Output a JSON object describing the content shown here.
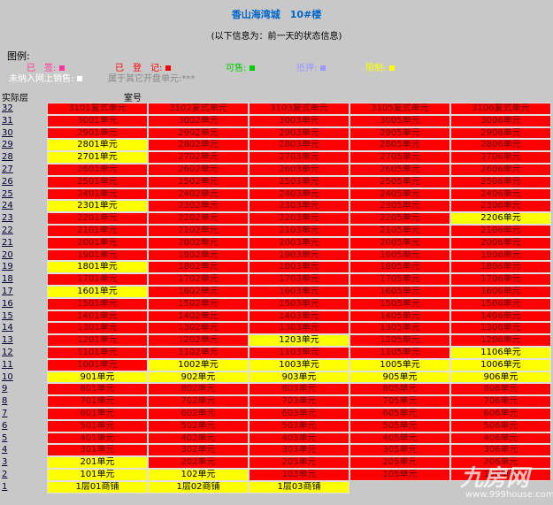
{
  "header": {
    "title": "香山海湾城　10#楼",
    "subtitle": "(以下信息为：前一天的状态信息)"
  },
  "legend": {
    "label": "图例:",
    "items": [
      {
        "label": "已　签:",
        "color": "#ff3399"
      },
      {
        "label": "已　登　记:",
        "color": "#ff0000"
      },
      {
        "label": "可售:",
        "color": "#00cc00"
      },
      {
        "label": "抵押:",
        "color": "#9999ff"
      },
      {
        "label": "限制:",
        "color": "#ffff00"
      },
      {
        "label": "未纳入网上销售:",
        "color": "#ffffff"
      }
    ],
    "other": "属于其它开盘单元:***"
  },
  "table": {
    "floor_header": "实际层",
    "room_header": "室号",
    "rows": [
      {
        "floor": "32",
        "cells": [
          {
            "text": "3101复式单元",
            "fill": "#ff0000"
          },
          {
            "text": "3102复式单元",
            "fill": "#ff0000"
          },
          {
            "text": "3103复式单元",
            "fill": "#ff0000"
          },
          {
            "text": "3105复式单元",
            "fill": "#ff0000"
          },
          {
            "text": "3106复式单元",
            "fill": "#ff0000"
          }
        ]
      },
      {
        "floor": "31",
        "cells": [
          {
            "text": "3001单元",
            "fill": "#ff0000"
          },
          {
            "text": "3002单元",
            "fill": "#ff0000"
          },
          {
            "text": "3003单元",
            "fill": "#ff0000"
          },
          {
            "text": "3005单元",
            "fill": "#ff0000"
          },
          {
            "text": "3006单元",
            "fill": "#ff0000"
          }
        ]
      },
      {
        "floor": "30",
        "cells": [
          {
            "text": "2901单元",
            "fill": "#ff0000"
          },
          {
            "text": "2902单元",
            "fill": "#ff0000"
          },
          {
            "text": "2903单元",
            "fill": "#ff0000"
          },
          {
            "text": "2905单元",
            "fill": "#ff0000"
          },
          {
            "text": "2906单元",
            "fill": "#ff0000"
          }
        ]
      },
      {
        "floor": "29",
        "cells": [
          {
            "text": "2801单元",
            "fill": "#ffff00"
          },
          {
            "text": "2802单元",
            "fill": "#ff0000"
          },
          {
            "text": "2803单元",
            "fill": "#ff0000"
          },
          {
            "text": "2805单元",
            "fill": "#ff0000"
          },
          {
            "text": "2806单元",
            "fill": "#ff0000"
          }
        ]
      },
      {
        "floor": "28",
        "cells": [
          {
            "text": "2701单元",
            "fill": "#ffff00"
          },
          {
            "text": "2702单元",
            "fill": "#ff0000"
          },
          {
            "text": "2703单元",
            "fill": "#ff0000"
          },
          {
            "text": "2705单元",
            "fill": "#ff0000"
          },
          {
            "text": "2706单元",
            "fill": "#ff0000"
          }
        ]
      },
      {
        "floor": "27",
        "cells": [
          {
            "text": "2601单元",
            "fill": "#ff0000"
          },
          {
            "text": "2602单元",
            "fill": "#ff0000"
          },
          {
            "text": "2603单元",
            "fill": "#ff0000"
          },
          {
            "text": "2605单元",
            "fill": "#ff0000"
          },
          {
            "text": "2606单元",
            "fill": "#ff0000"
          }
        ]
      },
      {
        "floor": "26",
        "cells": [
          {
            "text": "2501单元",
            "fill": "#ff0000"
          },
          {
            "text": "2502单元",
            "fill": "#ff0000"
          },
          {
            "text": "2503单元",
            "fill": "#ff0000"
          },
          {
            "text": "2505单元",
            "fill": "#ff0000"
          },
          {
            "text": "2506单元",
            "fill": "#ff0000"
          }
        ]
      },
      {
        "floor": "25",
        "cells": [
          {
            "text": "2401单元",
            "fill": "#ff0000"
          },
          {
            "text": "2402单元",
            "fill": "#ff0000"
          },
          {
            "text": "2403单元",
            "fill": "#ff0000"
          },
          {
            "text": "2405单元",
            "fill": "#ff0000"
          },
          {
            "text": "2406单元",
            "fill": "#ff0000"
          }
        ]
      },
      {
        "floor": "24",
        "cells": [
          {
            "text": "2301单元",
            "fill": "#ffff00"
          },
          {
            "text": "2302单元",
            "fill": "#ff0000"
          },
          {
            "text": "2303单元",
            "fill": "#ff0000"
          },
          {
            "text": "2305单元",
            "fill": "#ff0000"
          },
          {
            "text": "2306单元",
            "fill": "#ff0000"
          }
        ]
      },
      {
        "floor": "23",
        "cells": [
          {
            "text": "2201单元",
            "fill": "#ff0000"
          },
          {
            "text": "2202单元",
            "fill": "#ff0000"
          },
          {
            "text": "2203单元",
            "fill": "#ff0000"
          },
          {
            "text": "2205单元",
            "fill": "#ff0000"
          },
          {
            "text": "2206单元",
            "fill": "#ffff00"
          }
        ]
      },
      {
        "floor": "22",
        "cells": [
          {
            "text": "2101单元",
            "fill": "#ff0000"
          },
          {
            "text": "2102单元",
            "fill": "#ff0000"
          },
          {
            "text": "2103单元",
            "fill": "#ff0000"
          },
          {
            "text": "2105单元",
            "fill": "#ff0000"
          },
          {
            "text": "2106单元",
            "fill": "#ff0000"
          }
        ]
      },
      {
        "floor": "21",
        "cells": [
          {
            "text": "2001单元",
            "fill": "#ff0000"
          },
          {
            "text": "2002单元",
            "fill": "#ff0000"
          },
          {
            "text": "2003单元",
            "fill": "#ff0000"
          },
          {
            "text": "2005单元",
            "fill": "#ff0000"
          },
          {
            "text": "2006单元",
            "fill": "#ff0000"
          }
        ]
      },
      {
        "floor": "20",
        "cells": [
          {
            "text": "1901单元",
            "fill": "#ff0000"
          },
          {
            "text": "1902单元",
            "fill": "#ff0000"
          },
          {
            "text": "1903单元",
            "fill": "#ff0000"
          },
          {
            "text": "1905单元",
            "fill": "#ff0000"
          },
          {
            "text": "1906单元",
            "fill": "#ff0000"
          }
        ]
      },
      {
        "floor": "19",
        "cells": [
          {
            "text": "1801单元",
            "fill": "#ffff00"
          },
          {
            "text": "1802单元",
            "fill": "#ff0000"
          },
          {
            "text": "1803单元",
            "fill": "#ff0000"
          },
          {
            "text": "1805单元",
            "fill": "#ff0000"
          },
          {
            "text": "1806单元",
            "fill": "#ff0000"
          }
        ]
      },
      {
        "floor": "18",
        "cells": [
          {
            "text": "1701单元",
            "fill": "#ff0000"
          },
          {
            "text": "1702单元",
            "fill": "#ff0000"
          },
          {
            "text": "1703单元",
            "fill": "#ff0000"
          },
          {
            "text": "1705单元",
            "fill": "#ff0000"
          },
          {
            "text": "1706单元",
            "fill": "#ff0000"
          }
        ]
      },
      {
        "floor": "17",
        "cells": [
          {
            "text": "1601单元",
            "fill": "#ffff00"
          },
          {
            "text": "1602单元",
            "fill": "#ff0000"
          },
          {
            "text": "1603单元",
            "fill": "#ff0000"
          },
          {
            "text": "1605单元",
            "fill": "#ff0000"
          },
          {
            "text": "1606单元",
            "fill": "#ff0000"
          }
        ]
      },
      {
        "floor": "16",
        "cells": [
          {
            "text": "1501单元",
            "fill": "#ff0000"
          },
          {
            "text": "1502单元",
            "fill": "#ff0000"
          },
          {
            "text": "1503单元",
            "fill": "#ff0000"
          },
          {
            "text": "1505单元",
            "fill": "#ff0000"
          },
          {
            "text": "1506单元",
            "fill": "#ff0000"
          }
        ]
      },
      {
        "floor": "15",
        "cells": [
          {
            "text": "1401单元",
            "fill": "#ff0000"
          },
          {
            "text": "1402单元",
            "fill": "#ff0000"
          },
          {
            "text": "1403单元",
            "fill": "#ff0000"
          },
          {
            "text": "1405单元",
            "fill": "#ff0000"
          },
          {
            "text": "1406单元",
            "fill": "#ff0000"
          }
        ]
      },
      {
        "floor": "14",
        "cells": [
          {
            "text": "1301单元",
            "fill": "#ff0000"
          },
          {
            "text": "1302单元",
            "fill": "#ff0000"
          },
          {
            "text": "1303单元",
            "fill": "#ff0000"
          },
          {
            "text": "1305单元",
            "fill": "#ff0000"
          },
          {
            "text": "1306单元",
            "fill": "#ff0000"
          }
        ]
      },
      {
        "floor": "13",
        "cells": [
          {
            "text": "1201单元",
            "fill": "#ff0000"
          },
          {
            "text": "1202单元",
            "fill": "#ff0000"
          },
          {
            "text": "1203单元",
            "fill": "#ffff00"
          },
          {
            "text": "1205单元",
            "fill": "#ff0000"
          },
          {
            "text": "1206单元",
            "fill": "#ff0000"
          }
        ]
      },
      {
        "floor": "12",
        "cells": [
          {
            "text": "1101单元",
            "fill": "#ff0000"
          },
          {
            "text": "1102单元",
            "fill": "#ff0000"
          },
          {
            "text": "1103单元",
            "fill": "#ff0000"
          },
          {
            "text": "1105单元",
            "fill": "#ff0000"
          },
          {
            "text": "1106单元",
            "fill": "#ffff00"
          }
        ]
      },
      {
        "floor": "11",
        "cells": [
          {
            "text": "1001单元",
            "fill": "#ff0000"
          },
          {
            "text": "1002单元",
            "fill": "#ffff00"
          },
          {
            "text": "1003单元",
            "fill": "#ffff00"
          },
          {
            "text": "1005单元",
            "fill": "#ffff00"
          },
          {
            "text": "1006单元",
            "fill": "#ffff00"
          }
        ]
      },
      {
        "floor": "10",
        "cells": [
          {
            "text": "901单元",
            "fill": "#ffff00"
          },
          {
            "text": "902单元",
            "fill": "#ffff00"
          },
          {
            "text": "903单元",
            "fill": "#ffff00"
          },
          {
            "text": "905单元",
            "fill": "#ffff00"
          },
          {
            "text": "906单元",
            "fill": "#ffff00"
          }
        ]
      },
      {
        "floor": "9",
        "cells": [
          {
            "text": "801单元",
            "fill": "#ff0000"
          },
          {
            "text": "802单元",
            "fill": "#ff0000"
          },
          {
            "text": "803单元",
            "fill": "#ff0000"
          },
          {
            "text": "805单元",
            "fill": "#ff0000"
          },
          {
            "text": "806单元",
            "fill": "#ff0000"
          }
        ]
      },
      {
        "floor": "8",
        "cells": [
          {
            "text": "701单元",
            "fill": "#ff0000"
          },
          {
            "text": "702单元",
            "fill": "#ff0000"
          },
          {
            "text": "703单元",
            "fill": "#ff0000"
          },
          {
            "text": "705单元",
            "fill": "#ff0000"
          },
          {
            "text": "706单元",
            "fill": "#ff0000"
          }
        ]
      },
      {
        "floor": "7",
        "cells": [
          {
            "text": "601单元",
            "fill": "#ff0000"
          },
          {
            "text": "602单元",
            "fill": "#ff0000"
          },
          {
            "text": "603单元",
            "fill": "#ff0000"
          },
          {
            "text": "605单元",
            "fill": "#ff0000"
          },
          {
            "text": "606单元",
            "fill": "#ff0000"
          }
        ]
      },
      {
        "floor": "6",
        "cells": [
          {
            "text": "501单元",
            "fill": "#ff0000"
          },
          {
            "text": "502单元",
            "fill": "#ff0000"
          },
          {
            "text": "503单元",
            "fill": "#ff0000"
          },
          {
            "text": "505单元",
            "fill": "#ff0000"
          },
          {
            "text": "506单元",
            "fill": "#ff0000"
          }
        ]
      },
      {
        "floor": "5",
        "cells": [
          {
            "text": "401单元",
            "fill": "#ff0000"
          },
          {
            "text": "402单元",
            "fill": "#ff0000"
          },
          {
            "text": "403单元",
            "fill": "#ff0000"
          },
          {
            "text": "405单元",
            "fill": "#ff0000"
          },
          {
            "text": "406单元",
            "fill": "#ff0000"
          }
        ]
      },
      {
        "floor": "4",
        "cells": [
          {
            "text": "301单元",
            "fill": "#ff0000"
          },
          {
            "text": "302单元",
            "fill": "#ff0000"
          },
          {
            "text": "303单元",
            "fill": "#ff0000"
          },
          {
            "text": "305单元",
            "fill": "#ff0000"
          },
          {
            "text": "306单元",
            "fill": "#ff0000"
          }
        ]
      },
      {
        "floor": "3",
        "cells": [
          {
            "text": "201单元",
            "fill": "#ffff00"
          },
          {
            "text": "202单元",
            "fill": "#ff0000"
          },
          {
            "text": "203单元",
            "fill": "#ff0000"
          },
          {
            "text": "205单元",
            "fill": "#ff0000"
          },
          {
            "text": "206单元",
            "fill": "#ff0000"
          }
        ]
      },
      {
        "floor": "2",
        "cells": [
          {
            "text": "101单元",
            "fill": "#ffff00"
          },
          {
            "text": "102单元",
            "fill": "#ffff00"
          },
          {
            "text": "103单元",
            "fill": "#ff0000"
          },
          {
            "text": "105单元",
            "fill": "#ff0000"
          },
          {
            "text": "106单元",
            "fill": "#ff0000"
          }
        ]
      },
      {
        "floor": "1",
        "cells": [
          {
            "text": "1层01商铺",
            "fill": "#ffff00"
          },
          {
            "text": "1层02商铺",
            "fill": "#ffff00"
          },
          {
            "text": "1层03商铺",
            "fill": "#ffff00"
          }
        ]
      }
    ]
  },
  "watermark": {
    "logo": "九房网",
    "url": "www.999house.com"
  }
}
